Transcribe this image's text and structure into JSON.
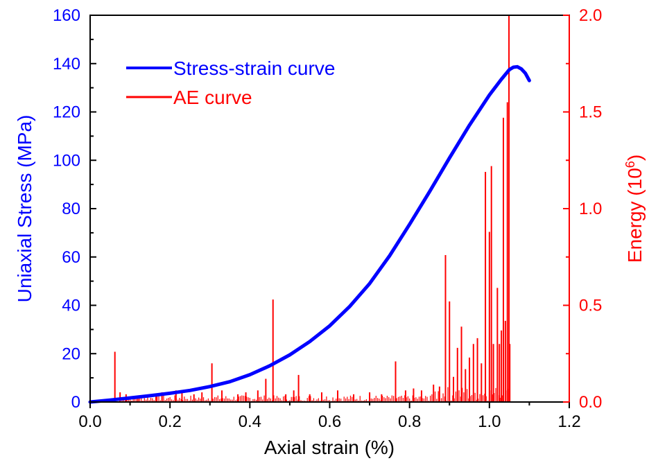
{
  "chart_data": {
    "type": "line",
    "xlabel": "Axial strain (%)",
    "ylabel_left": "Uniaxial Stress (MPa)",
    "ylabel_right_main": "Energy (10",
    "ylabel_right_sup": "6",
    "ylabel_right_close": ")",
    "xlim": [
      0,
      1.2
    ],
    "ylim_left": [
      0,
      160
    ],
    "ylim_right": [
      0,
      2.0
    ],
    "x_ticks": [
      "0.0",
      "0.2",
      "0.4",
      "0.6",
      "0.8",
      "1.0",
      "1.2"
    ],
    "y_left_ticks": [
      "0",
      "20",
      "40",
      "60",
      "80",
      "100",
      "120",
      "140",
      "160"
    ],
    "y_right_ticks": [
      "0.0",
      "0.5",
      "1.0",
      "1.5",
      "2.0"
    ],
    "legend_position": "top-left",
    "colors": {
      "stress": "#0000ff",
      "ae": "#ff0000",
      "axis": "#000000"
    },
    "series": [
      {
        "name": "Stress-strain curve",
        "axis": "left",
        "x": [
          0,
          0.05,
          0.1,
          0.15,
          0.2,
          0.25,
          0.3,
          0.35,
          0.4,
          0.45,
          0.5,
          0.55,
          0.6,
          0.65,
          0.7,
          0.75,
          0.8,
          0.85,
          0.9,
          0.95,
          1.0,
          1.03,
          1.05,
          1.06,
          1.07,
          1.08,
          1.09,
          1.1
        ],
        "y": [
          0,
          0.8,
          1.7,
          2.6,
          3.6,
          4.8,
          6.4,
          8.4,
          11.3,
          15.0,
          19.5,
          25.0,
          31.5,
          39.5,
          49.0,
          60.5,
          73.5,
          87.0,
          101.0,
          114.5,
          127.0,
          133.5,
          137.5,
          138.5,
          138.7,
          137.8,
          136.0,
          133.0
        ]
      },
      {
        "name": "AE curve",
        "axis": "right",
        "spikes": [
          [
            0.062,
            0.26
          ],
          [
            0.075,
            0.05
          ],
          [
            0.09,
            0.04
          ],
          [
            0.12,
            0.03
          ],
          [
            0.165,
            0.04
          ],
          [
            0.18,
            0.05
          ],
          [
            0.215,
            0.06
          ],
          [
            0.23,
            0.05
          ],
          [
            0.26,
            0.04
          ],
          [
            0.28,
            0.05
          ],
          [
            0.305,
            0.2
          ],
          [
            0.33,
            0.06
          ],
          [
            0.37,
            0.04
          ],
          [
            0.39,
            0.05
          ],
          [
            0.42,
            0.06
          ],
          [
            0.44,
            0.12
          ],
          [
            0.458,
            0.53
          ],
          [
            0.49,
            0.04
          ],
          [
            0.51,
            0.06
          ],
          [
            0.522,
            0.14
          ],
          [
            0.55,
            0.04
          ],
          [
            0.58,
            0.05
          ],
          [
            0.62,
            0.06
          ],
          [
            0.66,
            0.04
          ],
          [
            0.7,
            0.05
          ],
          [
            0.73,
            0.04
          ],
          [
            0.765,
            0.21
          ],
          [
            0.79,
            0.06
          ],
          [
            0.81,
            0.07
          ],
          [
            0.83,
            0.06
          ],
          [
            0.86,
            0.09
          ],
          [
            0.875,
            0.08
          ],
          [
            0.89,
            0.76
          ],
          [
            0.9,
            0.52
          ],
          [
            0.91,
            0.13
          ],
          [
            0.92,
            0.28
          ],
          [
            0.93,
            0.39
          ],
          [
            0.94,
            0.17
          ],
          [
            0.95,
            0.23
          ],
          [
            0.96,
            0.3
          ],
          [
            0.97,
            0.33
          ],
          [
            0.98,
            0.2
          ],
          [
            0.99,
            1.19
          ],
          [
            1.0,
            0.88
          ],
          [
            1.005,
            1.22
          ],
          [
            1.01,
            0.3
          ],
          [
            1.02,
            0.59
          ],
          [
            1.025,
            0.3
          ],
          [
            1.03,
            0.37
          ],
          [
            1.035,
            1.47
          ],
          [
            1.04,
            0.42
          ],
          [
            1.045,
            1.55
          ],
          [
            1.049,
            2.0
          ],
          [
            1.051,
            0.3
          ]
        ]
      }
    ]
  }
}
